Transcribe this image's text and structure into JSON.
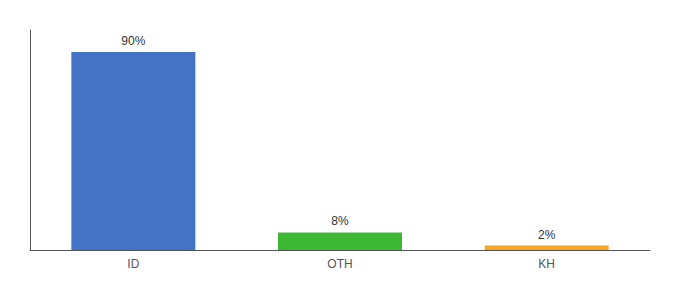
{
  "chart_data": {
    "type": "bar",
    "categories": [
      "ID",
      "OTH",
      "KH"
    ],
    "values": [
      90,
      8,
      2
    ],
    "value_labels": [
      "90%",
      "8%",
      "2%"
    ],
    "colors": [
      "#4472c4",
      "#3cb832",
      "#f5a623"
    ],
    "ylim": [
      0,
      100
    ],
    "grid": false,
    "data_labels": true,
    "tick_labels": "x"
  }
}
